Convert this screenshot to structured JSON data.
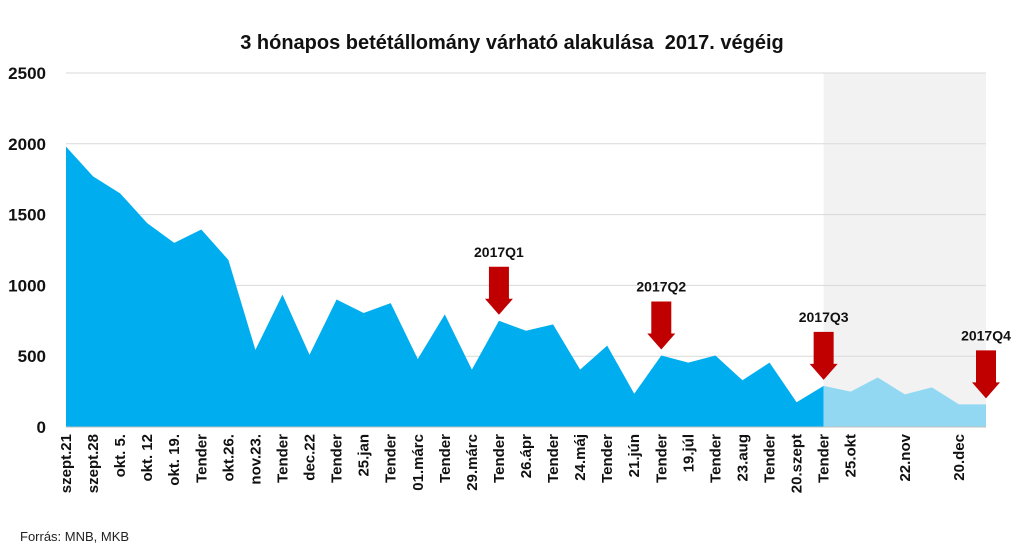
{
  "chart_data": {
    "type": "area",
    "title": "3 hónapos betétállomány várható alakulása  2017. végéig",
    "source": "Forrás: MNB, MKB",
    "ylim": [
      0,
      2500
    ],
    "yticks": [
      0,
      500,
      1000,
      1500,
      2000,
      2500
    ],
    "grid": true,
    "x_labels": [
      "szept.21",
      "szept.28",
      "okt. 5.",
      "okt. 12",
      "okt. 19.",
      "Tender",
      "okt.26.",
      "nov.23.",
      "Tender",
      "dec.22",
      "Tender",
      "25.jan",
      "Tender",
      "01.márc",
      "Tender",
      "29.márc",
      "Tender",
      "26.ápr",
      "Tender",
      "24.máj",
      "Tender",
      "21.jún",
      "Tender",
      "19.júl",
      "Tender",
      "23.aug",
      "Tender",
      "20.szept",
      "Tender",
      "25.okt",
      "",
      "22.nov",
      "",
      "20.dec",
      ""
    ],
    "series": [
      {
        "values": [
          1980,
          1770,
          1650,
          1440,
          1300,
          1395,
          1180,
          545,
          935,
          510,
          900,
          805,
          875,
          480,
          795,
          405,
          750,
          680,
          725,
          405,
          575,
          235,
          505,
          455,
          505,
          330,
          455,
          175,
          290,
          250,
          350,
          230,
          280,
          160,
          160
        ],
        "forecast_from_index": 28
      }
    ],
    "colors": {
      "actual": "#00AEEF",
      "forecast": "#93D8F3",
      "forecast_shade": "#F2F2F2",
      "arrow": "#C00000",
      "grid": "#D9D9D9"
    },
    "annotations": [
      {
        "label": "2017Q1",
        "index": 16
      },
      {
        "label": "2017Q2",
        "index": 22
      },
      {
        "label": "2017Q3",
        "index": 28
      },
      {
        "label": "2017Q4",
        "index": 34
      }
    ]
  }
}
